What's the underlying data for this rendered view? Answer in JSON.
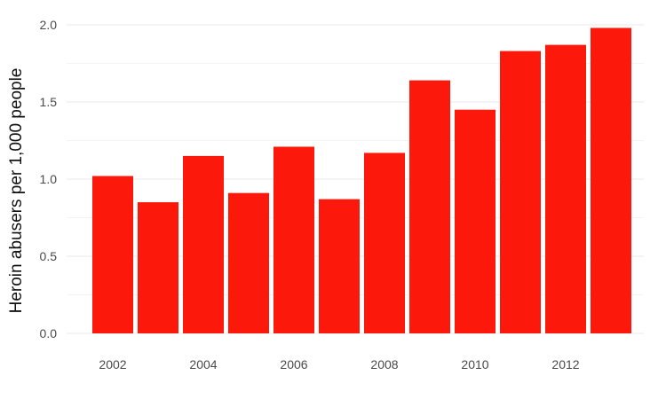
{
  "chart_data": {
    "type": "bar",
    "categories": [
      "2002",
      "2003",
      "2004",
      "2005",
      "2006",
      "2007",
      "2008",
      "2009",
      "2010",
      "2011",
      "2012",
      "2013"
    ],
    "values": [
      1.02,
      0.85,
      1.15,
      0.91,
      1.21,
      0.87,
      1.17,
      1.64,
      1.45,
      1.83,
      1.87,
      1.98
    ],
    "x_tick_labels": [
      "2002",
      "2004",
      "2006",
      "2008",
      "2010",
      "2012"
    ],
    "y_ticks": [
      0.0,
      0.5,
      1.0,
      1.5,
      2.0
    ],
    "y_tick_labels": [
      "0.0",
      "0.5",
      "1.0",
      "1.5",
      "2.0"
    ],
    "ylabel": "Heroin abusers per 1,000 people",
    "xlabel": "",
    "title": "",
    "ylim": [
      0,
      2.0
    ],
    "grid": "horizontal",
    "bar_color": "#fc190b",
    "grid_color": "#e9e9e9"
  }
}
